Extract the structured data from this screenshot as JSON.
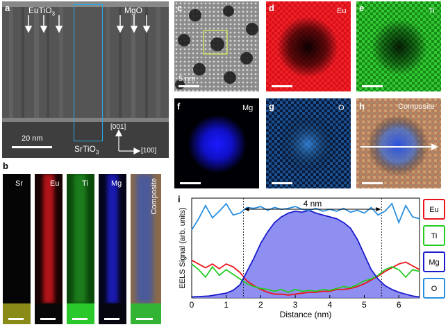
{
  "panels": {
    "a": {
      "letter": "a",
      "label_left": "EuTiO",
      "label_left_sub": "3",
      "label_right": "MgO",
      "substrate": "SrTiO",
      "substrate_sub": "3",
      "scale": "20 nm",
      "axis_up": "[001]",
      "axis_right": "[100]"
    },
    "b": {
      "letter": "b",
      "maps": [
        "Sr",
        "Eu",
        "Ti",
        "Mg",
        "Composite"
      ]
    },
    "c": {
      "letter": "c",
      "scale": "5 nm"
    },
    "d": {
      "letter": "d",
      "element": "Eu"
    },
    "e": {
      "letter": "e",
      "element": "Ti"
    },
    "f": {
      "letter": "f",
      "element": "Mg"
    },
    "g": {
      "letter": "g",
      "element": "O"
    },
    "h": {
      "letter": "h",
      "element": "Composite"
    },
    "i": {
      "letter": "i",
      "width_label": "4 nm"
    }
  },
  "colors": {
    "Eu": "#e8141a",
    "Ti": "#22cc22",
    "Mg": "#1a1acc",
    "O": "#2a8fe0",
    "fill": "#7b7bf0"
  },
  "chart_data": {
    "type": "line",
    "xlabel": "Distance (nm)",
    "ylabel": "EELS Signal (arb. units)",
    "xlim": [
      0,
      6.6
    ],
    "ylim": [
      0,
      1
    ],
    "xticks": [
      0,
      1,
      2,
      3,
      4,
      5,
      6
    ],
    "markers": [
      1.5,
      5.5
    ],
    "legend_position": "right",
    "series": [
      {
        "name": "Eu",
        "x": [
          0,
          0.2,
          0.4,
          0.6,
          0.8,
          1.0,
          1.2,
          1.4,
          1.6,
          1.8,
          2.0,
          2.2,
          2.4,
          2.6,
          2.8,
          3.0,
          3.2,
          3.4,
          3.6,
          3.8,
          4.0,
          4.2,
          4.4,
          4.6,
          4.8,
          5.0,
          5.2,
          5.4,
          5.6,
          5.8,
          6.0,
          6.2,
          6.4,
          6.6
        ],
        "values": [
          0.4,
          0.36,
          0.32,
          0.36,
          0.31,
          0.36,
          0.33,
          0.27,
          0.18,
          0.13,
          0.09,
          0.06,
          0.04,
          0.04,
          0.03,
          0.04,
          0.05,
          0.06,
          0.06,
          0.07,
          0.07,
          0.09,
          0.09,
          0.1,
          0.12,
          0.15,
          0.19,
          0.23,
          0.28,
          0.32,
          0.36,
          0.38,
          0.34,
          0.3
        ]
      },
      {
        "name": "Ti",
        "x": [
          0,
          0.2,
          0.4,
          0.6,
          0.8,
          1.0,
          1.2,
          1.4,
          1.6,
          1.8,
          2.0,
          2.2,
          2.4,
          2.6,
          2.8,
          3.0,
          3.2,
          3.4,
          3.6,
          3.8,
          4.0,
          4.2,
          4.4,
          4.6,
          4.8,
          5.0,
          5.2,
          5.4,
          5.6,
          5.8,
          6.0,
          6.2,
          6.4,
          6.6
        ],
        "values": [
          0.36,
          0.3,
          0.22,
          0.33,
          0.24,
          0.3,
          0.25,
          0.2,
          0.15,
          0.12,
          0.1,
          0.09,
          0.07,
          0.09,
          0.06,
          0.09,
          0.07,
          0.08,
          0.07,
          0.09,
          0.08,
          0.1,
          0.12,
          0.11,
          0.14,
          0.18,
          0.2,
          0.24,
          0.3,
          0.33,
          0.3,
          0.22,
          0.3,
          0.28
        ]
      },
      {
        "name": "Mg",
        "x": [
          0,
          0.5,
          1.0,
          1.2,
          1.4,
          1.6,
          1.8,
          2.0,
          2.2,
          2.4,
          2.6,
          2.8,
          3.0,
          3.2,
          3.4,
          3.6,
          3.8,
          4.0,
          4.2,
          4.4,
          4.6,
          4.8,
          5.0,
          5.2,
          5.4,
          5.6,
          5.8,
          6.0,
          6.2,
          6.4,
          6.6
        ],
        "values": [
          0.01,
          0.02,
          0.05,
          0.08,
          0.14,
          0.28,
          0.42,
          0.58,
          0.7,
          0.8,
          0.86,
          0.9,
          0.92,
          0.91,
          0.93,
          0.9,
          0.88,
          0.86,
          0.84,
          0.8,
          0.74,
          0.62,
          0.46,
          0.3,
          0.2,
          0.13,
          0.09,
          0.06,
          0.04,
          0.02,
          0.01
        ]
      },
      {
        "name": "O",
        "x": [
          0,
          0.2,
          0.4,
          0.6,
          0.8,
          1.0,
          1.2,
          1.4,
          1.6,
          1.8,
          2.0,
          2.2,
          2.4,
          2.6,
          2.8,
          3.0,
          3.2,
          3.4,
          3.6,
          3.8,
          4.0,
          4.2,
          4.4,
          4.6,
          4.8,
          5.0,
          5.2,
          5.4,
          5.6,
          5.8,
          6.0,
          6.2,
          6.4,
          6.6
        ],
        "values": [
          0.72,
          0.84,
          0.98,
          0.85,
          0.92,
          1.0,
          0.88,
          0.9,
          0.96,
          0.95,
          0.97,
          0.93,
          0.96,
          0.94,
          0.95,
          0.97,
          0.94,
          0.93,
          0.95,
          0.92,
          0.94,
          0.92,
          0.95,
          0.91,
          0.93,
          0.9,
          0.96,
          0.88,
          0.92,
          1.0,
          0.8,
          0.98,
          0.86,
          0.84
        ]
      }
    ]
  }
}
